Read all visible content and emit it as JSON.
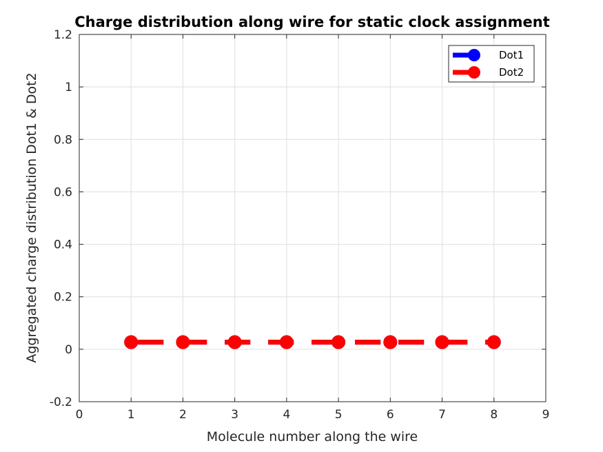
{
  "chart_data": {
    "type": "line",
    "title": "Charge distribution along wire for static clock assignment",
    "xlabel": "Molecule number along the wire",
    "ylabel": "Aggregated charge distribution Dot1 & Dot2",
    "xlim": [
      0,
      9
    ],
    "ylim": [
      -0.2,
      1.2
    ],
    "xticks": [
      "0",
      "1",
      "2",
      "3",
      "4",
      "5",
      "6",
      "7",
      "8",
      "9"
    ],
    "yticks": [
      "-0.2",
      "0",
      "0.2",
      "0.4",
      "0.6",
      "0.8",
      "1",
      "1.2"
    ],
    "grid": true,
    "legend_position": "top-right",
    "x": [
      1,
      2,
      3,
      4,
      5,
      6,
      7,
      8
    ],
    "series": [
      {
        "name": "Dot1",
        "color": "#0000ff",
        "line_style": "dashed",
        "marker": "circle",
        "values": [
          0.027,
          0.027,
          0.027,
          0.027,
          0.027,
          0.027,
          0.027,
          0.027
        ]
      },
      {
        "name": "Dot2",
        "color": "#ff0000",
        "line_style": "dashed",
        "marker": "circle",
        "values": [
          0.027,
          0.027,
          0.027,
          0.027,
          0.027,
          0.027,
          0.027,
          0.027
        ]
      }
    ]
  }
}
